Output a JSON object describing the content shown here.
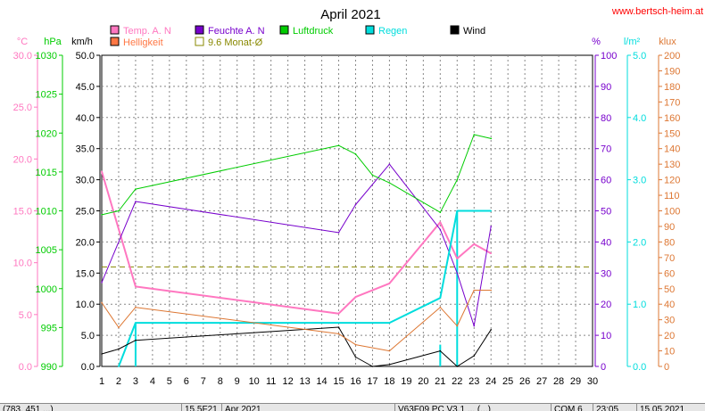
{
  "chart_data": {
    "type": "line",
    "title": "April 2021",
    "website": "www.bertsch-heim.at",
    "x_ticks": [
      "1",
      "2",
      "3",
      "4",
      "5",
      "6",
      "7",
      "8",
      "9",
      "10",
      "11",
      "12",
      "13",
      "14",
      "15",
      "16",
      "17",
      "18",
      "19",
      "20",
      "21",
      "22",
      "23",
      "24",
      "25",
      "26",
      "27",
      "28",
      "29",
      "30"
    ],
    "xlim": [
      1,
      30
    ],
    "grid": true,
    "axes": [
      {
        "id": "temp",
        "unit": "°C",
        "range": [
          0,
          30
        ],
        "ticks": [
          "30.0",
          "25.0",
          "20.0",
          "15.0",
          "10.0",
          "5.0",
          "0.0"
        ],
        "color": "#ff77c0"
      },
      {
        "id": "pressure",
        "unit": "hPa",
        "range": [
          990,
          1030
        ],
        "ticks": [
          "1030",
          "1025",
          "1020",
          "1015",
          "1010",
          "1005",
          "1000",
          "995",
          "990"
        ],
        "color": "#00cc00"
      },
      {
        "id": "wind",
        "unit": "km/h",
        "range": [
          0,
          50
        ],
        "ticks": [
          "50.0",
          "45.0",
          "40.0",
          "35.0",
          "30.0",
          "25.0",
          "20.0",
          "15.0",
          "10.0",
          "5.0",
          "0.0"
        ],
        "color": "#000000"
      },
      {
        "id": "humidity",
        "unit": "%",
        "range": [
          0,
          100
        ],
        "ticks": [
          "100",
          "90",
          "80",
          "70",
          "60",
          "50",
          "40",
          "30",
          "20",
          "10",
          "0"
        ],
        "color": "#7700cc"
      },
      {
        "id": "rain",
        "unit": "l/m²",
        "range": [
          0,
          5
        ],
        "ticks": [
          "5.0",
          "4.0",
          "3.0",
          "2.0",
          "1.0",
          "0.0"
        ],
        "color": "#00dddd"
      },
      {
        "id": "light",
        "unit": "klux",
        "range": [
          0,
          200
        ],
        "ticks": [
          "200",
          "190",
          "180",
          "170",
          "160",
          "150",
          "140",
          "130",
          "120",
          "110",
          "100",
          "90",
          "80",
          "70",
          "60",
          "50",
          "40",
          "30",
          "20",
          "10",
          "0"
        ],
        "color": "#dd7733"
      }
    ],
    "legend": [
      {
        "name": "Temp. A. N",
        "color": "#ff77c0",
        "style": "filled"
      },
      {
        "name": "Feuchte A. N",
        "color": "#7700cc",
        "style": "filled"
      },
      {
        "name": "Luftdruck",
        "color": "#00cc00",
        "style": "filled"
      },
      {
        "name": "Regen",
        "color": "#00dddd",
        "style": "filled"
      },
      {
        "name": "Wind",
        "color": "#000000",
        "style": "filled"
      },
      {
        "name": "Helligkeit",
        "color": "#ff7744",
        "style": "filled"
      },
      {
        "name": "9.6 Monat-Ø",
        "color": "#888800",
        "style": "outline"
      }
    ],
    "series": [
      {
        "name": "Temp. A. N",
        "axis": "temp",
        "color": "#ff77c0",
        "width": 2,
        "points": [
          [
            1,
            18.8
          ],
          [
            3,
            7.7
          ],
          [
            15,
            5.1
          ],
          [
            16,
            6.7
          ],
          [
            18,
            8.0
          ],
          [
            21,
            13.9
          ],
          [
            22,
            10.4
          ],
          [
            23,
            11.8
          ],
          [
            24,
            10.9
          ]
        ]
      },
      {
        "name": "Feuchte A. N",
        "axis": "humidity",
        "color": "#7700cc",
        "width": 1,
        "points": [
          [
            1,
            27
          ],
          [
            3,
            53
          ],
          [
            15,
            43
          ],
          [
            16,
            52
          ],
          [
            18,
            65
          ],
          [
            21,
            44
          ],
          [
            22,
            30
          ],
          [
            23,
            13
          ],
          [
            24,
            45
          ]
        ]
      },
      {
        "name": "Luftdruck",
        "axis": "pressure",
        "color": "#00cc00",
        "width": 1,
        "points": [
          [
            1,
            1009.5
          ],
          [
            2,
            1010
          ],
          [
            3,
            1012.8
          ],
          [
            15,
            1018.4
          ],
          [
            16,
            1017.3
          ],
          [
            17,
            1014.6
          ],
          [
            18,
            1013.6
          ],
          [
            21,
            1009.8
          ],
          [
            22,
            1014
          ],
          [
            23,
            1019.8
          ],
          [
            24,
            1019.3
          ]
        ]
      },
      {
        "name": "Regen",
        "axis": "rain",
        "color": "#00dddd",
        "width": 2,
        "points": [
          [
            2,
            0
          ],
          [
            3,
            0.7
          ],
          [
            18,
            0.7
          ],
          [
            21,
            1.1
          ],
          [
            22,
            2.5
          ],
          [
            24,
            2.5
          ]
        ]
      },
      {
        "name": "Wind",
        "axis": "wind",
        "color": "#000000",
        "width": 1,
        "points": [
          [
            1,
            2.0
          ],
          [
            2,
            2.8
          ],
          [
            3,
            4.2
          ],
          [
            15,
            6.3
          ],
          [
            16,
            1.5
          ],
          [
            17,
            0
          ],
          [
            18,
            0.3
          ],
          [
            21,
            2.5
          ],
          [
            22,
            0
          ],
          [
            23,
            1.7
          ],
          [
            24,
            5.9
          ]
        ]
      },
      {
        "name": "Helligkeit",
        "axis": "light",
        "color": "#dd7733",
        "width": 1,
        "points": [
          [
            1,
            41
          ],
          [
            2,
            25
          ],
          [
            3,
            38
          ],
          [
            15,
            21
          ],
          [
            16,
            14
          ],
          [
            18,
            10
          ],
          [
            21,
            38
          ],
          [
            22,
            26
          ],
          [
            23,
            49
          ],
          [
            24,
            49
          ]
        ]
      }
    ],
    "bars": [
      {
        "name": "Regen",
        "axis": "rain",
        "color": "#00dddd",
        "items": [
          [
            3,
            0.7
          ],
          [
            21,
            0.35
          ],
          [
            22,
            2.5
          ]
        ]
      }
    ],
    "reference_lines": [
      {
        "name": "9.6 Monat-Ø",
        "axis": "temp",
        "value": 9.6,
        "color": "#888800",
        "dash": "6,4"
      }
    ]
  },
  "statusbar": {
    "cells": [
      "(783, 451 ...)",
      "15.5F21",
      "Apr 2021",
      "V63F09 PC V3.1 ... (...)",
      "COM 6",
      "23:05",
      "15.05.2021"
    ]
  }
}
